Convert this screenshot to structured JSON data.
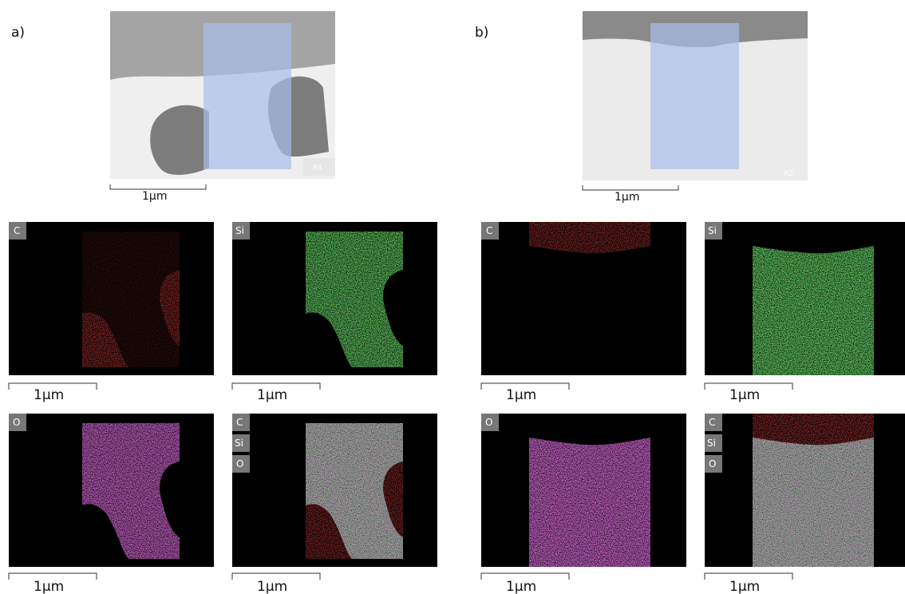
{
  "panels": [
    {
      "label": "a)",
      "overview": {
        "region_label": "R1",
        "scale_bar": "1µm"
      },
      "maps": [
        {
          "elements": [
            "C"
          ],
          "scale_bar": "1µm"
        },
        {
          "elements": [
            "Si"
          ],
          "scale_bar": "1µm"
        },
        {
          "elements": [
            "O"
          ],
          "scale_bar": "1µm"
        },
        {
          "elements": [
            "C",
            "Si",
            "O"
          ],
          "scale_bar": "1µm"
        }
      ]
    },
    {
      "label": "b)",
      "overview": {
        "region_label": "R2",
        "scale_bar": "1µm"
      },
      "maps": [
        {
          "elements": [
            "C"
          ],
          "scale_bar": "1µm"
        },
        {
          "elements": [
            "Si"
          ],
          "scale_bar": "1µm"
        },
        {
          "elements": [
            "O"
          ],
          "scale_bar": "1µm"
        },
        {
          "elements": [
            "C",
            "Si",
            "O"
          ],
          "scale_bar": "1µm"
        }
      ]
    }
  ]
}
